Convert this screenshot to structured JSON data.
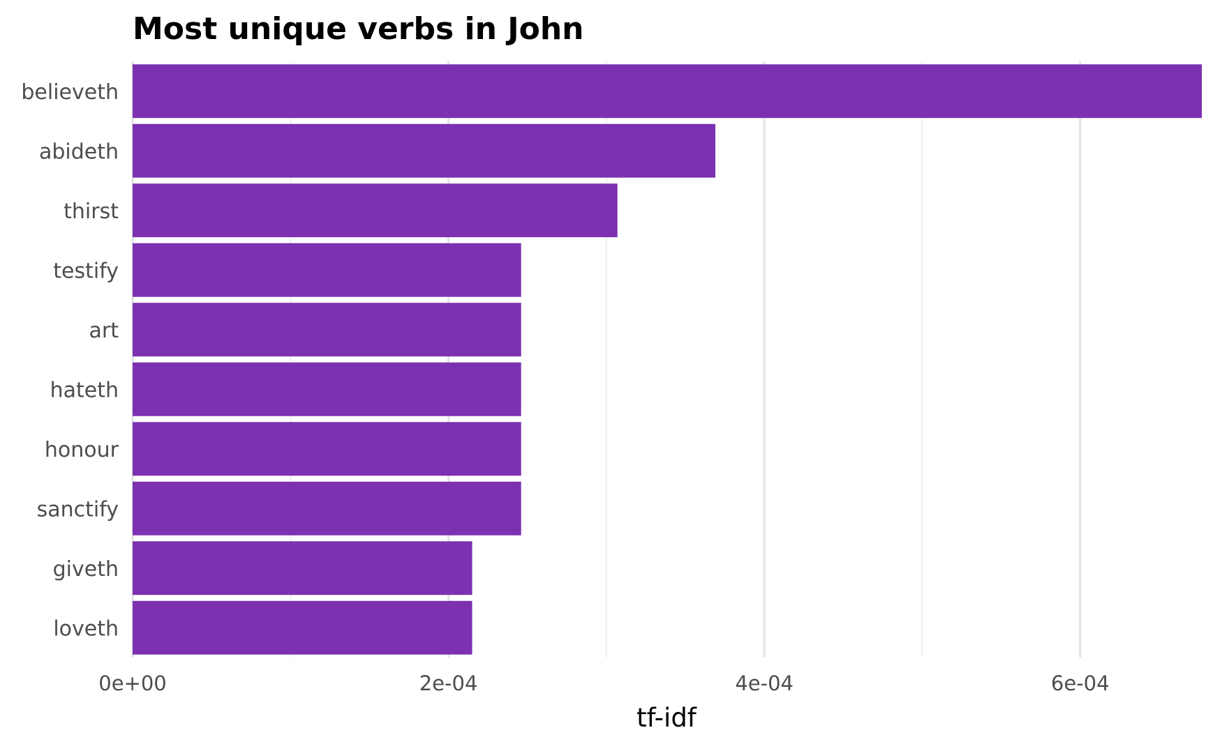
{
  "chart_data": {
    "type": "bar",
    "orientation": "horizontal",
    "title": "Most unique verbs in John",
    "xlabel": "tf-idf",
    "ylabel": "",
    "categories": [
      "believeth",
      "abideth",
      "thirst",
      "testify",
      "art",
      "hateth",
      "honour",
      "sanctify",
      "giveth",
      "loveth"
    ],
    "values": [
      0.000677,
      0.000369,
      0.000307,
      0.000246,
      0.000246,
      0.000246,
      0.000246,
      0.000246,
      0.000215,
      0.000215
    ],
    "xlim": [
      0,
      0.000677
    ],
    "x_ticks": [
      0,
      0.0002,
      0.0004,
      0.0006
    ],
    "x_tick_labels": [
      "0e+00",
      "2e-04",
      "4e-04",
      "6e-04"
    ],
    "x_minor_ticks": [
      0.0001,
      0.0003,
      0.0005
    ],
    "grid": "vertical",
    "legend": "none",
    "bar_color": "#7B31B0"
  }
}
